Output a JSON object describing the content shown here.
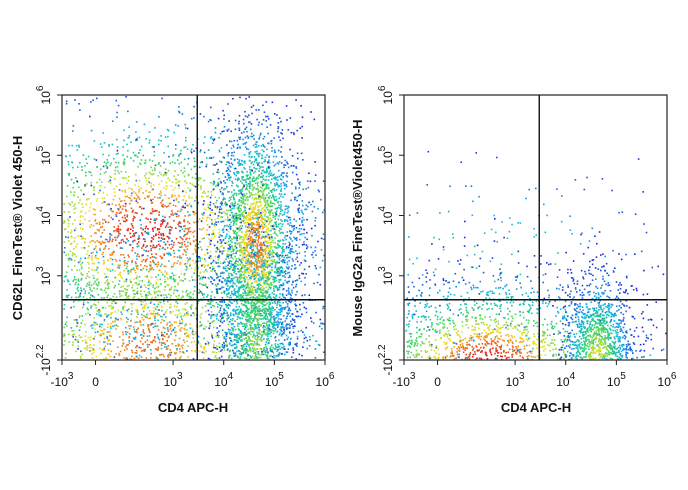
{
  "chart_data": [
    {
      "type": "scatter",
      "subtype": "flow-cytometry-density-dot-plot",
      "xlabel": "CD4 APC-H",
      "ylabel": "CD62L FineTest® Violet 450-H",
      "x_scale": "biexponential",
      "y_scale": "biexponential",
      "x_ticks": [
        {
          "label": "-10",
          "exp": "3"
        },
        {
          "label": "0",
          "exp": ""
        },
        {
          "label": "10",
          "exp": "3"
        },
        {
          "label": "10",
          "exp": "4"
        },
        {
          "label": "10",
          "exp": "5"
        },
        {
          "label": "10",
          "exp": "6"
        }
      ],
      "y_ticks": [
        {
          "label": "-10",
          "exp": "2.2"
        },
        {
          "label": "10",
          "exp": "3"
        },
        {
          "label": "10",
          "exp": "4"
        },
        {
          "label": "10",
          "exp": "5"
        },
        {
          "label": "10",
          "exp": "6"
        }
      ],
      "gate": {
        "x": 3000,
        "y": 400
      },
      "populations": [
        {
          "x": 300,
          "y": 5500,
          "x_spread": 0.55,
          "y_spread": 0.32,
          "weight": 1.0
        },
        {
          "x": 300,
          "y": 80,
          "x_spread": 0.55,
          "y_spread": 0.3,
          "weight": 0.85
        },
        {
          "x": 42000,
          "y": 3300,
          "x_spread": 0.12,
          "y_spread": 0.32,
          "weight": 0.85
        },
        {
          "x": 42000,
          "y": 80,
          "x_spread": 0.12,
          "y_spread": 0.3,
          "weight": 0.45
        },
        {
          "x": 9000,
          "y": 3500,
          "x_spread": 0.55,
          "y_spread": 0.28,
          "weight": 0.12
        },
        {
          "x": 9000,
          "y": 80,
          "x_spread": 0.55,
          "y_spread": 0.25,
          "weight": 0.1
        }
      ],
      "colors": {
        "low": "#1f1fd6",
        "mid_low": "#14b4e8",
        "mid": "#2cd36a",
        "mid_high": "#f2e224",
        "high": "#e81212"
      }
    },
    {
      "type": "scatter",
      "subtype": "flow-cytometry-density-dot-plot",
      "xlabel": "CD4 APC-H",
      "ylabel": "Mouse IgG2a FineTest®Violet450-H",
      "x_scale": "biexponential",
      "y_scale": "biexponential",
      "x_ticks": [
        {
          "label": "-10",
          "exp": "3"
        },
        {
          "label": "0",
          "exp": ""
        },
        {
          "label": "10",
          "exp": "3"
        },
        {
          "label": "10",
          "exp": "4"
        },
        {
          "label": "10",
          "exp": "5"
        },
        {
          "label": "10",
          "exp": "6"
        }
      ],
      "y_ticks": [
        {
          "label": "-10",
          "exp": "2.2"
        },
        {
          "label": "10",
          "exp": "3"
        },
        {
          "label": "10",
          "exp": "4"
        },
        {
          "label": "10",
          "exp": "5"
        },
        {
          "label": "10",
          "exp": "6"
        }
      ],
      "gate": {
        "x": 3000,
        "y": 400
      },
      "populations": [
        {
          "x": 300,
          "y": 20,
          "x_spread": 0.45,
          "y_spread": 0.22,
          "weight": 1.0
        },
        {
          "x": 42000,
          "y": 20,
          "x_spread": 0.1,
          "y_spread": 0.22,
          "weight": 0.6
        },
        {
          "x": 400,
          "y": 1500,
          "x_spread": 0.55,
          "y_spread": 0.3,
          "weight": 0.08
        },
        {
          "x": 9000,
          "y": 20,
          "x_spread": 0.55,
          "y_spread": 0.18,
          "weight": 0.1
        }
      ],
      "colors": {
        "low": "#1f1fd6",
        "mid_low": "#14b4e8",
        "mid": "#2cd36a",
        "mid_high": "#f2e224",
        "high": "#e81212"
      }
    }
  ]
}
